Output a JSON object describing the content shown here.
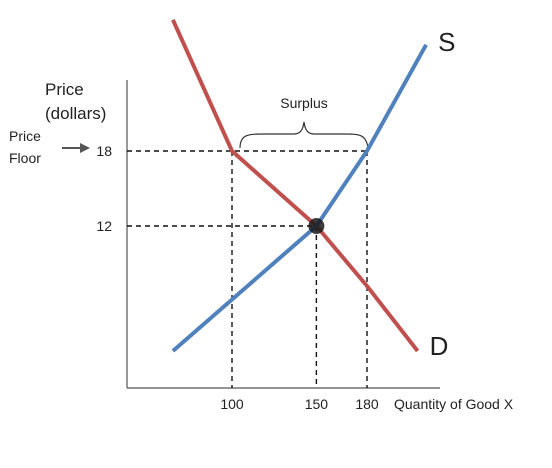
{
  "chart_data": {
    "type": "line",
    "title": "",
    "xlabel": "Quantity of Good X",
    "ylabel_line1": "Price",
    "ylabel_line2": "(dollars)",
    "x_ticks": [
      100,
      150,
      180
    ],
    "y_ticks": [
      12,
      18
    ],
    "series": [
      {
        "name": "D",
        "color": "#c0504d",
        "points": [
          [
            65,
            28.5
          ],
          [
            100,
            18
          ],
          [
            150,
            12
          ],
          [
            180,
            7.2
          ],
          [
            210,
            2
          ]
        ]
      },
      {
        "name": "S",
        "color": "#4f81bd",
        "points": [
          [
            65,
            2
          ],
          [
            150,
            12
          ],
          [
            180,
            18
          ],
          [
            215,
            26.5
          ]
        ]
      }
    ],
    "equilibrium": {
      "x": 150,
      "y": 12
    },
    "price_floor": {
      "label_line1": "Price",
      "label_line2": "Floor",
      "price": 18,
      "quantity_demanded": 100,
      "quantity_supplied": 180
    },
    "annotations": {
      "surplus": "Surplus"
    },
    "grid": false,
    "legend": "none"
  }
}
